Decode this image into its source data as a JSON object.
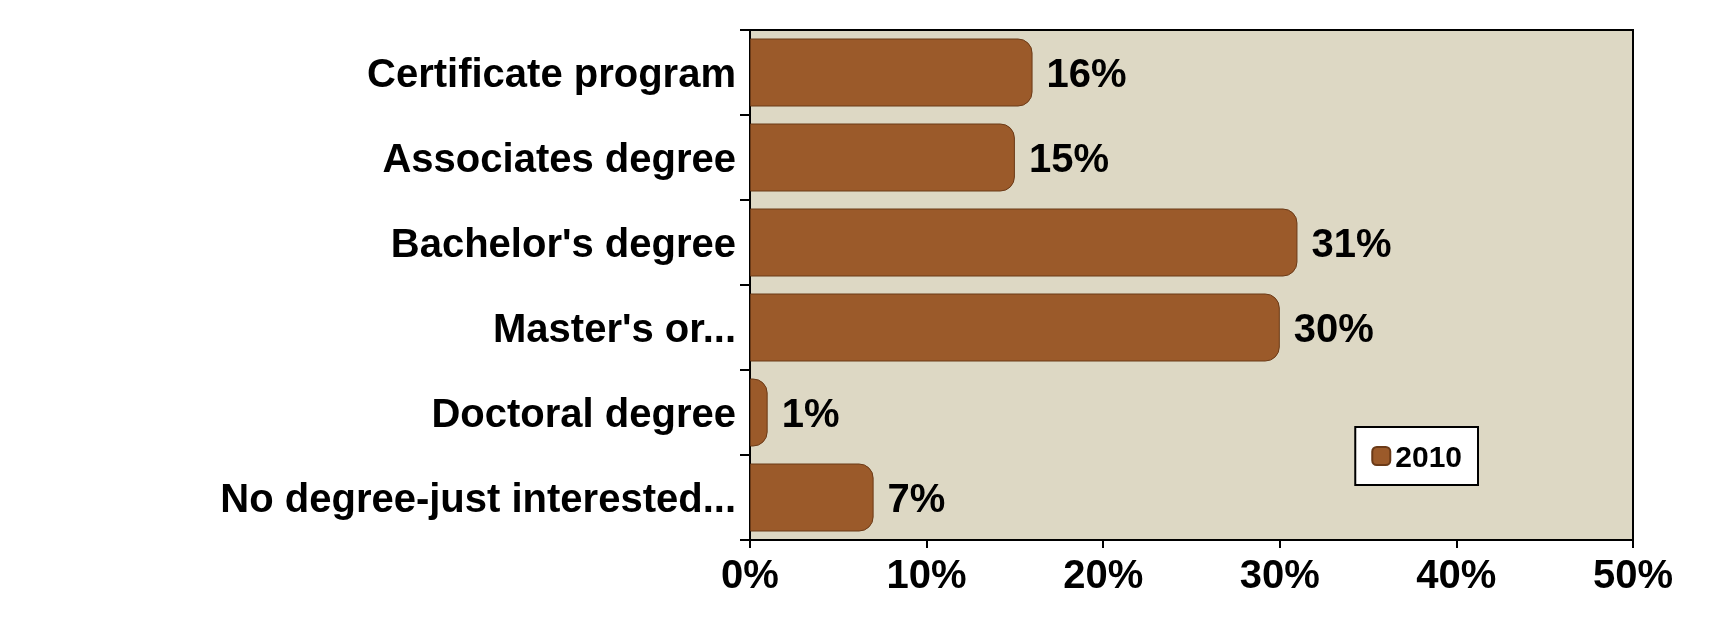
{
  "chart_data": {
    "type": "bar",
    "orientation": "horizontal",
    "categories": [
      "Certificate program",
      "Associates degree",
      "Bachelor's degree",
      "Master's or...",
      "Doctoral degree",
      "No degree-just interested..."
    ],
    "series": [
      {
        "name": "2010",
        "color": "#9b5a2a",
        "values": [
          16,
          15,
          31,
          30,
          1,
          7
        ],
        "value_labels": [
          "16%",
          "15%",
          "31%",
          "30%",
          "1%",
          "7%"
        ]
      }
    ],
    "xlim": [
      0,
      50
    ],
    "xticks": [
      {
        "value": 0,
        "label": "0%"
      },
      {
        "value": 10,
        "label": "10%"
      },
      {
        "value": 20,
        "label": "20%"
      },
      {
        "value": 30,
        "label": "30%"
      },
      {
        "value": 40,
        "label": "40%"
      },
      {
        "value": 50,
        "label": "50%"
      }
    ],
    "grid": false,
    "legend": "bottom right"
  }
}
